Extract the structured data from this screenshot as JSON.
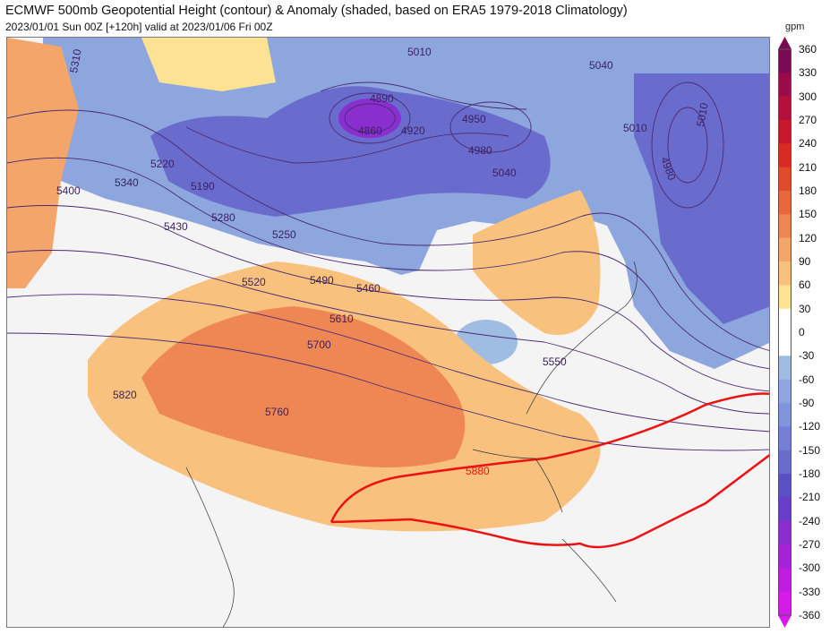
{
  "header": {
    "title": "ECMWF 500mb Geopotential Height (contour) & Anomaly (shaded, based on ERA5 1979-2018 Climatology)",
    "subtitle": "2023/01/01 Sun 00Z [+120h] valid at 2023/01/06 Fri 00Z"
  },
  "map": {
    "contour_labels": [
      "5310",
      "5400",
      "5340",
      "5220",
      "5190",
      "5280",
      "5430",
      "5250",
      "5520",
      "5490",
      "5460",
      "5610",
      "5700",
      "5820",
      "5760",
      "5880",
      "4890",
      "4860",
      "4920",
      "4950",
      "4980",
      "5040",
      "5010",
      "5040",
      "5010",
      "4980",
      "5010",
      "5550"
    ],
    "highlight_contour": {
      "value": "5880",
      "color": "#ee1111"
    },
    "colors": {
      "land": "#f4f4f4",
      "positive": "#f0b57a",
      "negative": "#7f95dc",
      "contour": "#4a2a73",
      "coast": "#333333"
    }
  },
  "colorbar": {
    "unit": "gpm",
    "ticks": [
      "360",
      "330",
      "300",
      "270",
      "240",
      "210",
      "180",
      "150",
      "120",
      "90",
      "60",
      "30",
      "0",
      "-30",
      "-60",
      "-90",
      "-120",
      "-150",
      "-180",
      "-210",
      "-240",
      "-270",
      "-300",
      "-330",
      "-360"
    ],
    "colors": [
      "#7a0a55",
      "#9b0a4a",
      "#b5103b",
      "#c8182c",
      "#d92a25",
      "#e24a2e",
      "#e8673c",
      "#ee8754",
      "#f3a56a",
      "#f8c27e",
      "#fde293",
      "#ffffff",
      "#ffffff",
      "#b5d6e8",
      "#9fbde3",
      "#8ea6de",
      "#7f95dc",
      "#7380d6",
      "#6a6ccd",
      "#5a4fc4",
      "#6a3dc8",
      "#8a2fcf",
      "#a522d7",
      "#c01be0",
      "#d41be8"
    ]
  }
}
